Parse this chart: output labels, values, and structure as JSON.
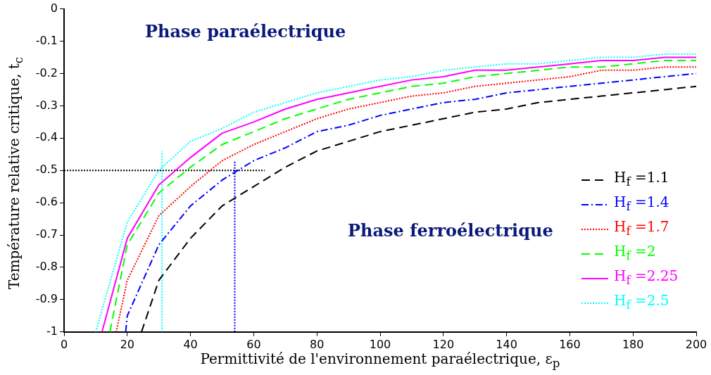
{
  "chart_data": {
    "type": "line",
    "xlabel": "Permittivité de l'environnement paraélectrique, ε$_{p}$",
    "ylabel": "Température relative critique, t$_{c}$",
    "annotations": [
      "Phase paraélectrique",
      "Phase ferroélectrique"
    ],
    "xlim": [
      0,
      200
    ],
    "xticks": [
      0,
      20,
      40,
      60,
      80,
      100,
      120,
      140,
      160,
      180,
      200
    ],
    "ylim": [
      -1,
      0
    ],
    "yticks": [
      -1,
      -0.9,
      -0.8,
      -0.7,
      -0.6,
      -0.5,
      -0.4,
      -0.3,
      -0.2,
      -0.1,
      0
    ],
    "grid": false,
    "legend": "right",
    "marker": "none",
    "series": [
      {
        "name": "H$_{f}$ =1.1",
        "color": "#000000",
        "line_style": "dashed",
        "x": [
          24.5,
          30,
          40,
          50,
          60,
          70,
          80,
          90,
          100,
          110,
          120,
          130,
          140,
          150,
          160,
          170,
          180,
          190,
          200
        ],
        "values": [
          -1,
          -0.84,
          -0.71,
          -0.61,
          -0.55,
          -0.49,
          -0.44,
          -0.41,
          -0.38,
          -0.36,
          -0.34,
          -0.32,
          -0.31,
          -0.29,
          -0.28,
          -0.27,
          -0.26,
          -0.25,
          -0.24
        ]
      },
      {
        "name": "H$_{f}$ =1.4",
        "color": "#0000ff",
        "line_style": "dashdot",
        "x": [
          19.5,
          20,
          30,
          40,
          50,
          60,
          70,
          80,
          90,
          100,
          110,
          120,
          130,
          140,
          150,
          160,
          170,
          180,
          190,
          200
        ],
        "values": [
          -1,
          -0.95,
          -0.73,
          -0.61,
          -0.53,
          -0.47,
          -0.43,
          -0.38,
          -0.36,
          -0.33,
          -0.31,
          -0.29,
          -0.28,
          -0.26,
          -0.25,
          -0.24,
          -0.23,
          -0.22,
          -0.21,
          -0.2
        ]
      },
      {
        "name": "H$_{f}$ =1.7",
        "color": "#ff0000",
        "line_style": "dotted",
        "x": [
          16.5,
          20,
          30,
          40,
          50,
          60,
          70,
          80,
          90,
          100,
          110,
          120,
          130,
          140,
          150,
          160,
          170,
          180,
          190,
          200
        ],
        "values": [
          -1,
          -0.84,
          -0.64,
          -0.55,
          -0.47,
          -0.42,
          -0.38,
          -0.34,
          -0.31,
          -0.29,
          -0.27,
          -0.26,
          -0.24,
          -0.23,
          -0.22,
          -0.21,
          -0.19,
          -0.19,
          -0.18,
          -0.18
        ]
      },
      {
        "name": "H$_{f}$ =2",
        "color": "#00ff00",
        "line_style": "dashed",
        "x": [
          14.5,
          20,
          30,
          40,
          50,
          60,
          70,
          80,
          90,
          100,
          110,
          120,
          130,
          140,
          150,
          160,
          170,
          180,
          190,
          200
        ],
        "values": [
          -1,
          -0.73,
          -0.57,
          -0.49,
          -0.42,
          -0.38,
          -0.34,
          -0.31,
          -0.28,
          -0.26,
          -0.24,
          -0.23,
          -0.21,
          -0.2,
          -0.19,
          -0.18,
          -0.18,
          -0.17,
          -0.16,
          -0.16
        ]
      },
      {
        "name": "H$_{f}$ =2.25",
        "color": "#ff00ff",
        "line_style": "solid",
        "x": [
          12,
          20,
          30,
          40,
          50,
          60,
          70,
          80,
          90,
          100,
          110,
          120,
          130,
          140,
          150,
          160,
          170,
          180,
          190,
          200
        ],
        "values": [
          -1,
          -0.71,
          -0.545,
          -0.46,
          -0.385,
          -0.35,
          -0.31,
          -0.28,
          -0.26,
          -0.24,
          -0.22,
          -0.21,
          -0.19,
          -0.19,
          -0.18,
          -0.17,
          -0.16,
          -0.16,
          -0.15,
          -0.15
        ]
      },
      {
        "name": "H$_{f}$ =2.5",
        "color": "#00ffff",
        "line_style": "dotted",
        "x": [
          10,
          20,
          30,
          40,
          50,
          60,
          70,
          80,
          90,
          100,
          110,
          120,
          130,
          140,
          150,
          160,
          170,
          180,
          190,
          200
        ],
        "values": [
          -1,
          -0.66,
          -0.5,
          -0.41,
          -0.37,
          -0.32,
          -0.29,
          -0.26,
          -0.24,
          -0.22,
          -0.21,
          -0.19,
          -0.18,
          -0.17,
          -0.17,
          -0.16,
          -0.15,
          -0.15,
          -0.14,
          -0.14
        ]
      },
      {
        "color": "#000000",
        "line_style": "dotted",
        "x": [
          0,
          63.5
        ],
        "values": [
          -0.5,
          -0.5
        ]
      },
      {
        "color": "#00ffff",
        "line_style": "dotted",
        "x": [
          31,
          31
        ],
        "values": [
          -1,
          -0.44
        ]
      },
      {
        "color": "#0000ff",
        "line_style": "dotted",
        "x": [
          54,
          54
        ],
        "values": [
          -1,
          -0.47
        ]
      }
    ]
  }
}
